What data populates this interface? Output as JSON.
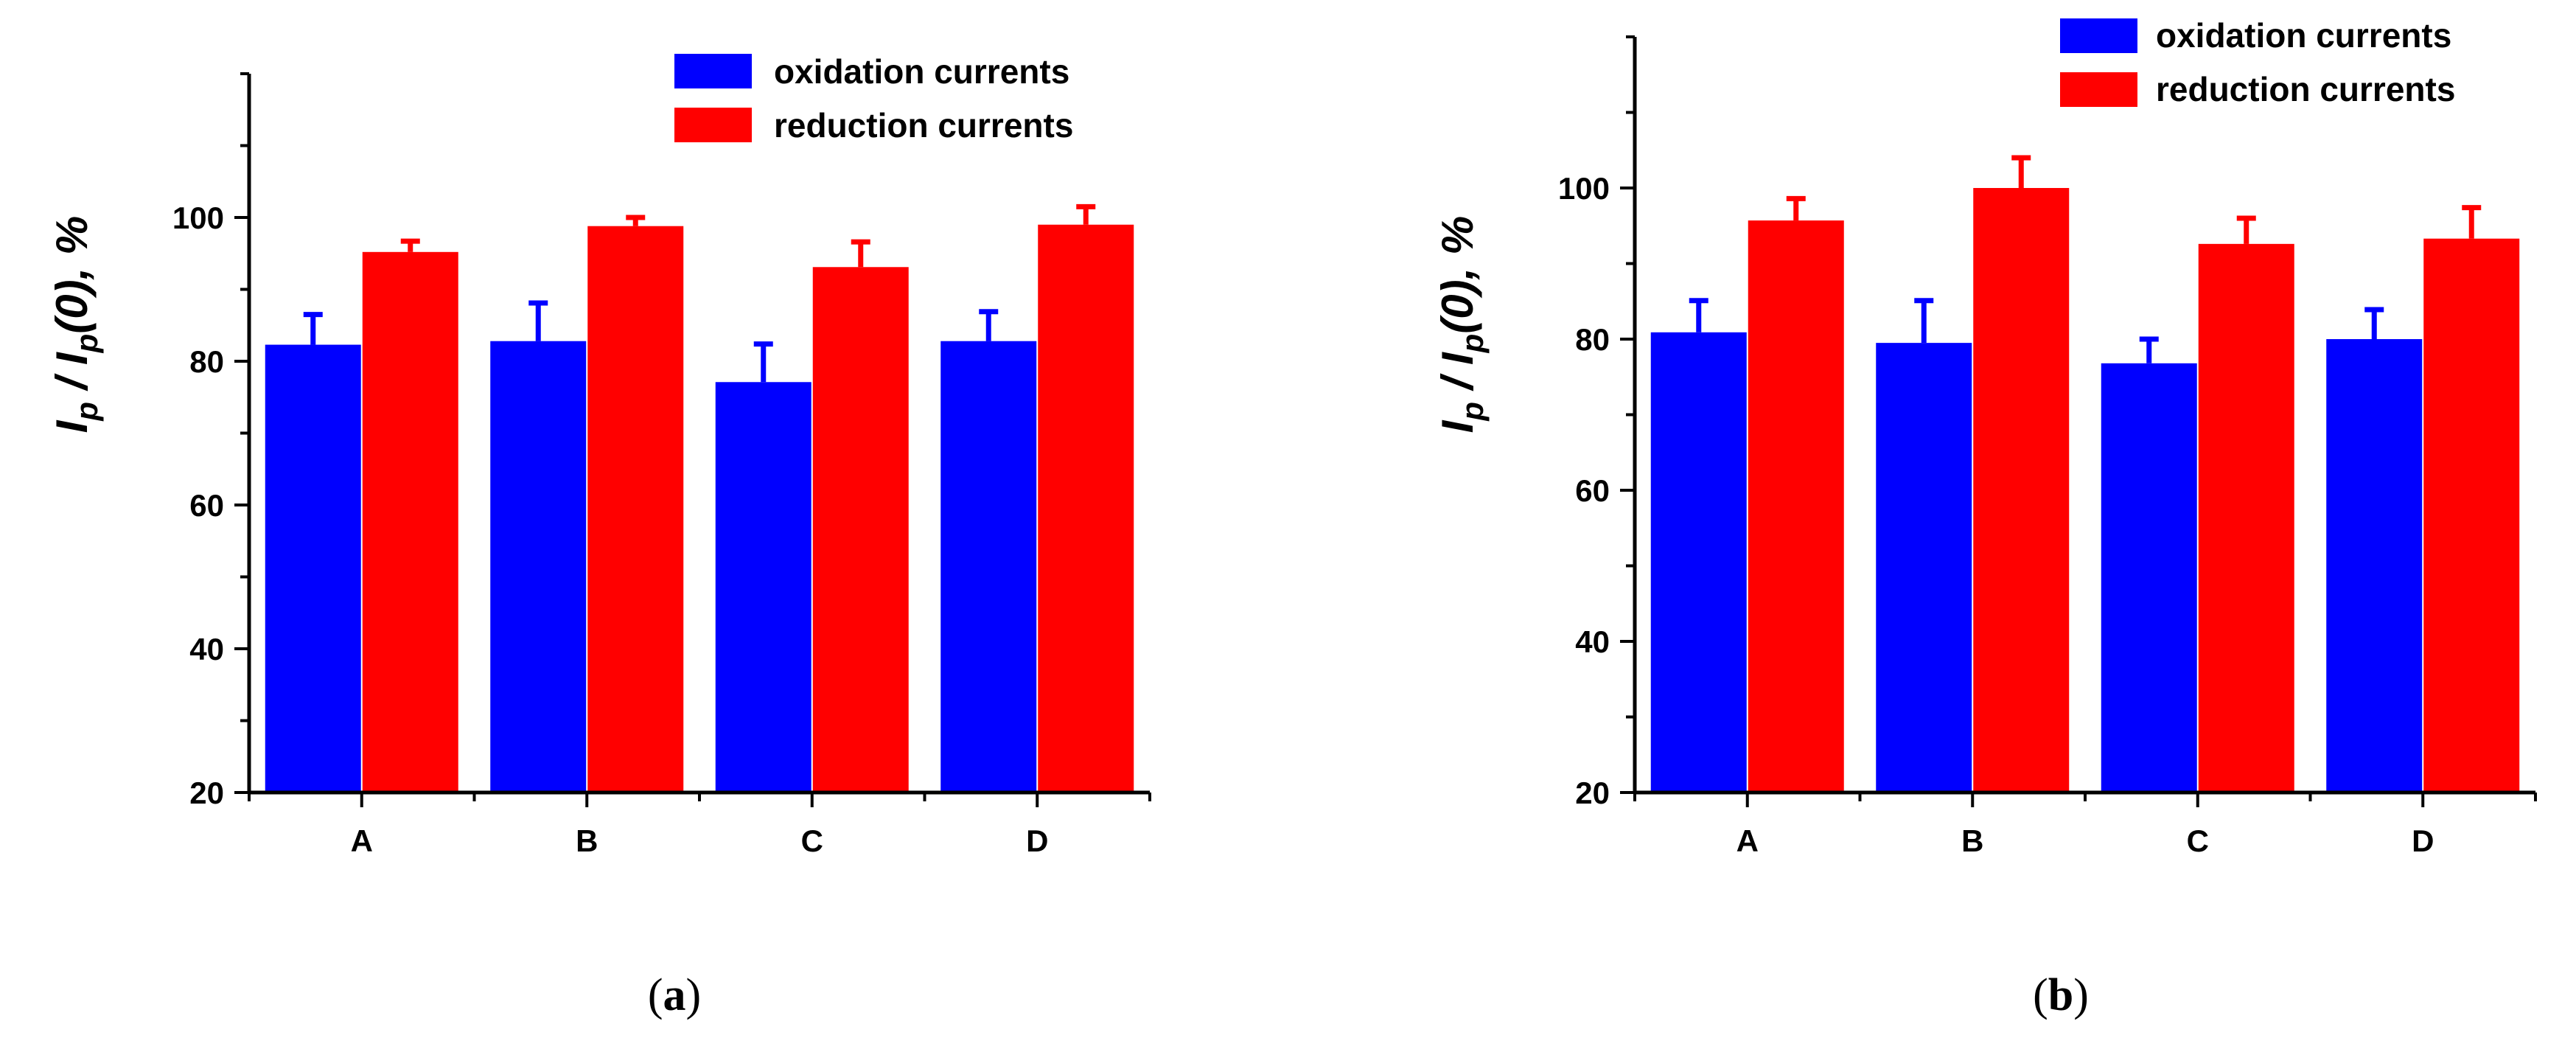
{
  "chart_data": [
    {
      "type": "bar",
      "panel_label": "a",
      "categories": [
        "A",
        "B",
        "C",
        "D"
      ],
      "series": [
        {
          "name": "oxidation currents",
          "color": "#0000ff",
          "values": [
            82.3,
            82.8,
            77.1,
            82.8
          ],
          "errors": [
            4.2,
            5.3,
            5.3,
            4.1
          ]
        },
        {
          "name": "reduction currents",
          "color": "#ff0000",
          "values": [
            95.2,
            98.8,
            93.1,
            99.0
          ],
          "errors": [
            1.5,
            1.2,
            3.5,
            2.5
          ]
        }
      ],
      "ylabel": {
        "main1": "I",
        "sub1": "p",
        "mid": " / I",
        "sub2": "p",
        "tail": "(0), %"
      },
      "ylim": [
        20,
        120
      ],
      "yticks": [
        20,
        40,
        60,
        80,
        100
      ],
      "legend_position": "top-right"
    },
    {
      "type": "bar",
      "panel_label": "b",
      "categories": [
        "A",
        "B",
        "C",
        "D"
      ],
      "series": [
        {
          "name": "oxidation currents",
          "color": "#0000ff",
          "values": [
            80.9,
            79.5,
            76.8,
            80.0
          ],
          "errors": [
            4.2,
            5.6,
            3.2,
            3.9
          ]
        },
        {
          "name": "reduction currents",
          "color": "#ff0000",
          "values": [
            95.7,
            100.0,
            92.6,
            93.3
          ],
          "errors": [
            2.9,
            4.0,
            3.4,
            4.1
          ]
        }
      ],
      "ylabel": {
        "main1": "I",
        "sub1": "p",
        "mid": " / I",
        "sub2": "p",
        "tail": "(0), %"
      },
      "ylim": [
        20,
        120
      ],
      "yticks": [
        20,
        40,
        60,
        80,
        100
      ],
      "legend_position": "top-right"
    }
  ]
}
